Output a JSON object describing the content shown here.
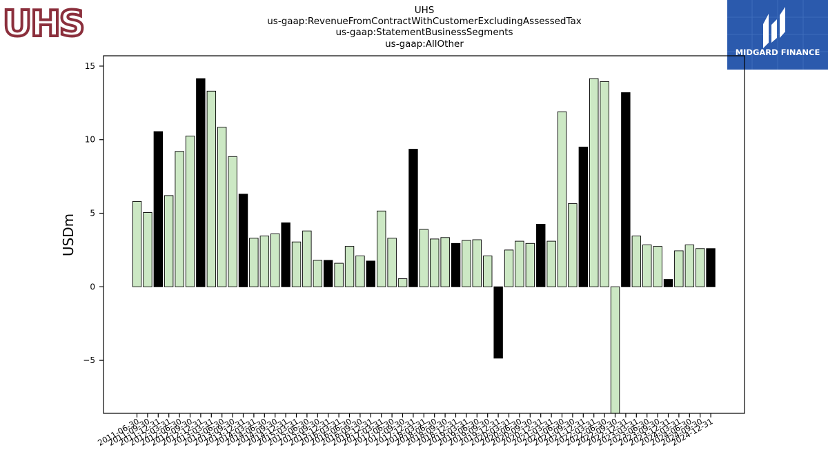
{
  "header": {
    "title_lines": [
      "UHS",
      "us-gaap:RevenueFromContractWithCustomerExcludingAssessedTax",
      "us-gaap:StatementBusinessSegments",
      "us-gaap:AllOther"
    ]
  },
  "logos": {
    "left_text": "UHS",
    "right_text": "MIDGARD FINANCE"
  },
  "colors": {
    "bar_light": "#cce8c4",
    "bar_dark": "#000000",
    "right_logo_bg": "#2b5aad",
    "left_logo": "#8b2f3c"
  },
  "chart_data": {
    "type": "bar",
    "ylabel": "USDm",
    "ylim": [
      -8.6,
      15.7
    ],
    "yticks": [
      -5,
      0,
      5,
      10,
      15
    ],
    "categories": [
      "2011-06-30",
      "2011-09-30",
      "2011-12-31",
      "2012-03-31",
      "2012-06-30",
      "2012-09-30",
      "2012-12-31",
      "2013-03-31",
      "2013-06-30",
      "2013-09-30",
      "2013-12-31",
      "2014-03-31",
      "2014-06-30",
      "2014-09-30",
      "2014-12-31",
      "2015-03-31",
      "2015-06-30",
      "2015-09-30",
      "2015-12-31",
      "2016-03-31",
      "2016-06-30",
      "2016-09-30",
      "2016-12-31",
      "2017-03-31",
      "2017-06-30",
      "2017-09-30",
      "2017-12-31",
      "2018-03-31",
      "2018-06-30",
      "2018-09-30",
      "2018-12-31",
      "2019-03-31",
      "2019-06-30",
      "2019-09-30",
      "2019-12-31",
      "2020-03-31",
      "2020-06-30",
      "2020-09-30",
      "2020-12-31",
      "2021-03-31",
      "2021-06-30",
      "2021-09-30",
      "2021-12-31",
      "2022-03-31",
      "2022-06-30",
      "2022-09-30",
      "2022-12-31",
      "2023-03-31",
      "2023-06-30",
      "2023-09-30",
      "2023-12-31",
      "2024-03-31",
      "2024-06-30",
      "2024-09-30",
      "2024-12-31"
    ],
    "values": [
      5.8,
      5.05,
      10.55,
      6.2,
      9.2,
      10.25,
      14.15,
      13.3,
      10.85,
      8.85,
      6.3,
      3.3,
      3.45,
      3.6,
      4.35,
      3.05,
      3.8,
      1.8,
      1.8,
      1.6,
      2.75,
      2.1,
      1.75,
      5.15,
      3.3,
      0.55,
      9.35,
      3.9,
      3.25,
      3.35,
      2.95,
      3.15,
      3.2,
      2.1,
      -4.85,
      2.5,
      3.1,
      2.95,
      4.25,
      3.1,
      11.9,
      5.65,
      9.5,
      14.15,
      13.95,
      -8.6,
      13.2,
      3.45,
      2.85,
      2.75,
      0.5,
      2.45,
      2.85,
      2.6,
      2.6
    ],
    "dark_bars": [
      2,
      6,
      10,
      14,
      18,
      22,
      26,
      30,
      34,
      38,
      42,
      46,
      50,
      54
    ]
  }
}
